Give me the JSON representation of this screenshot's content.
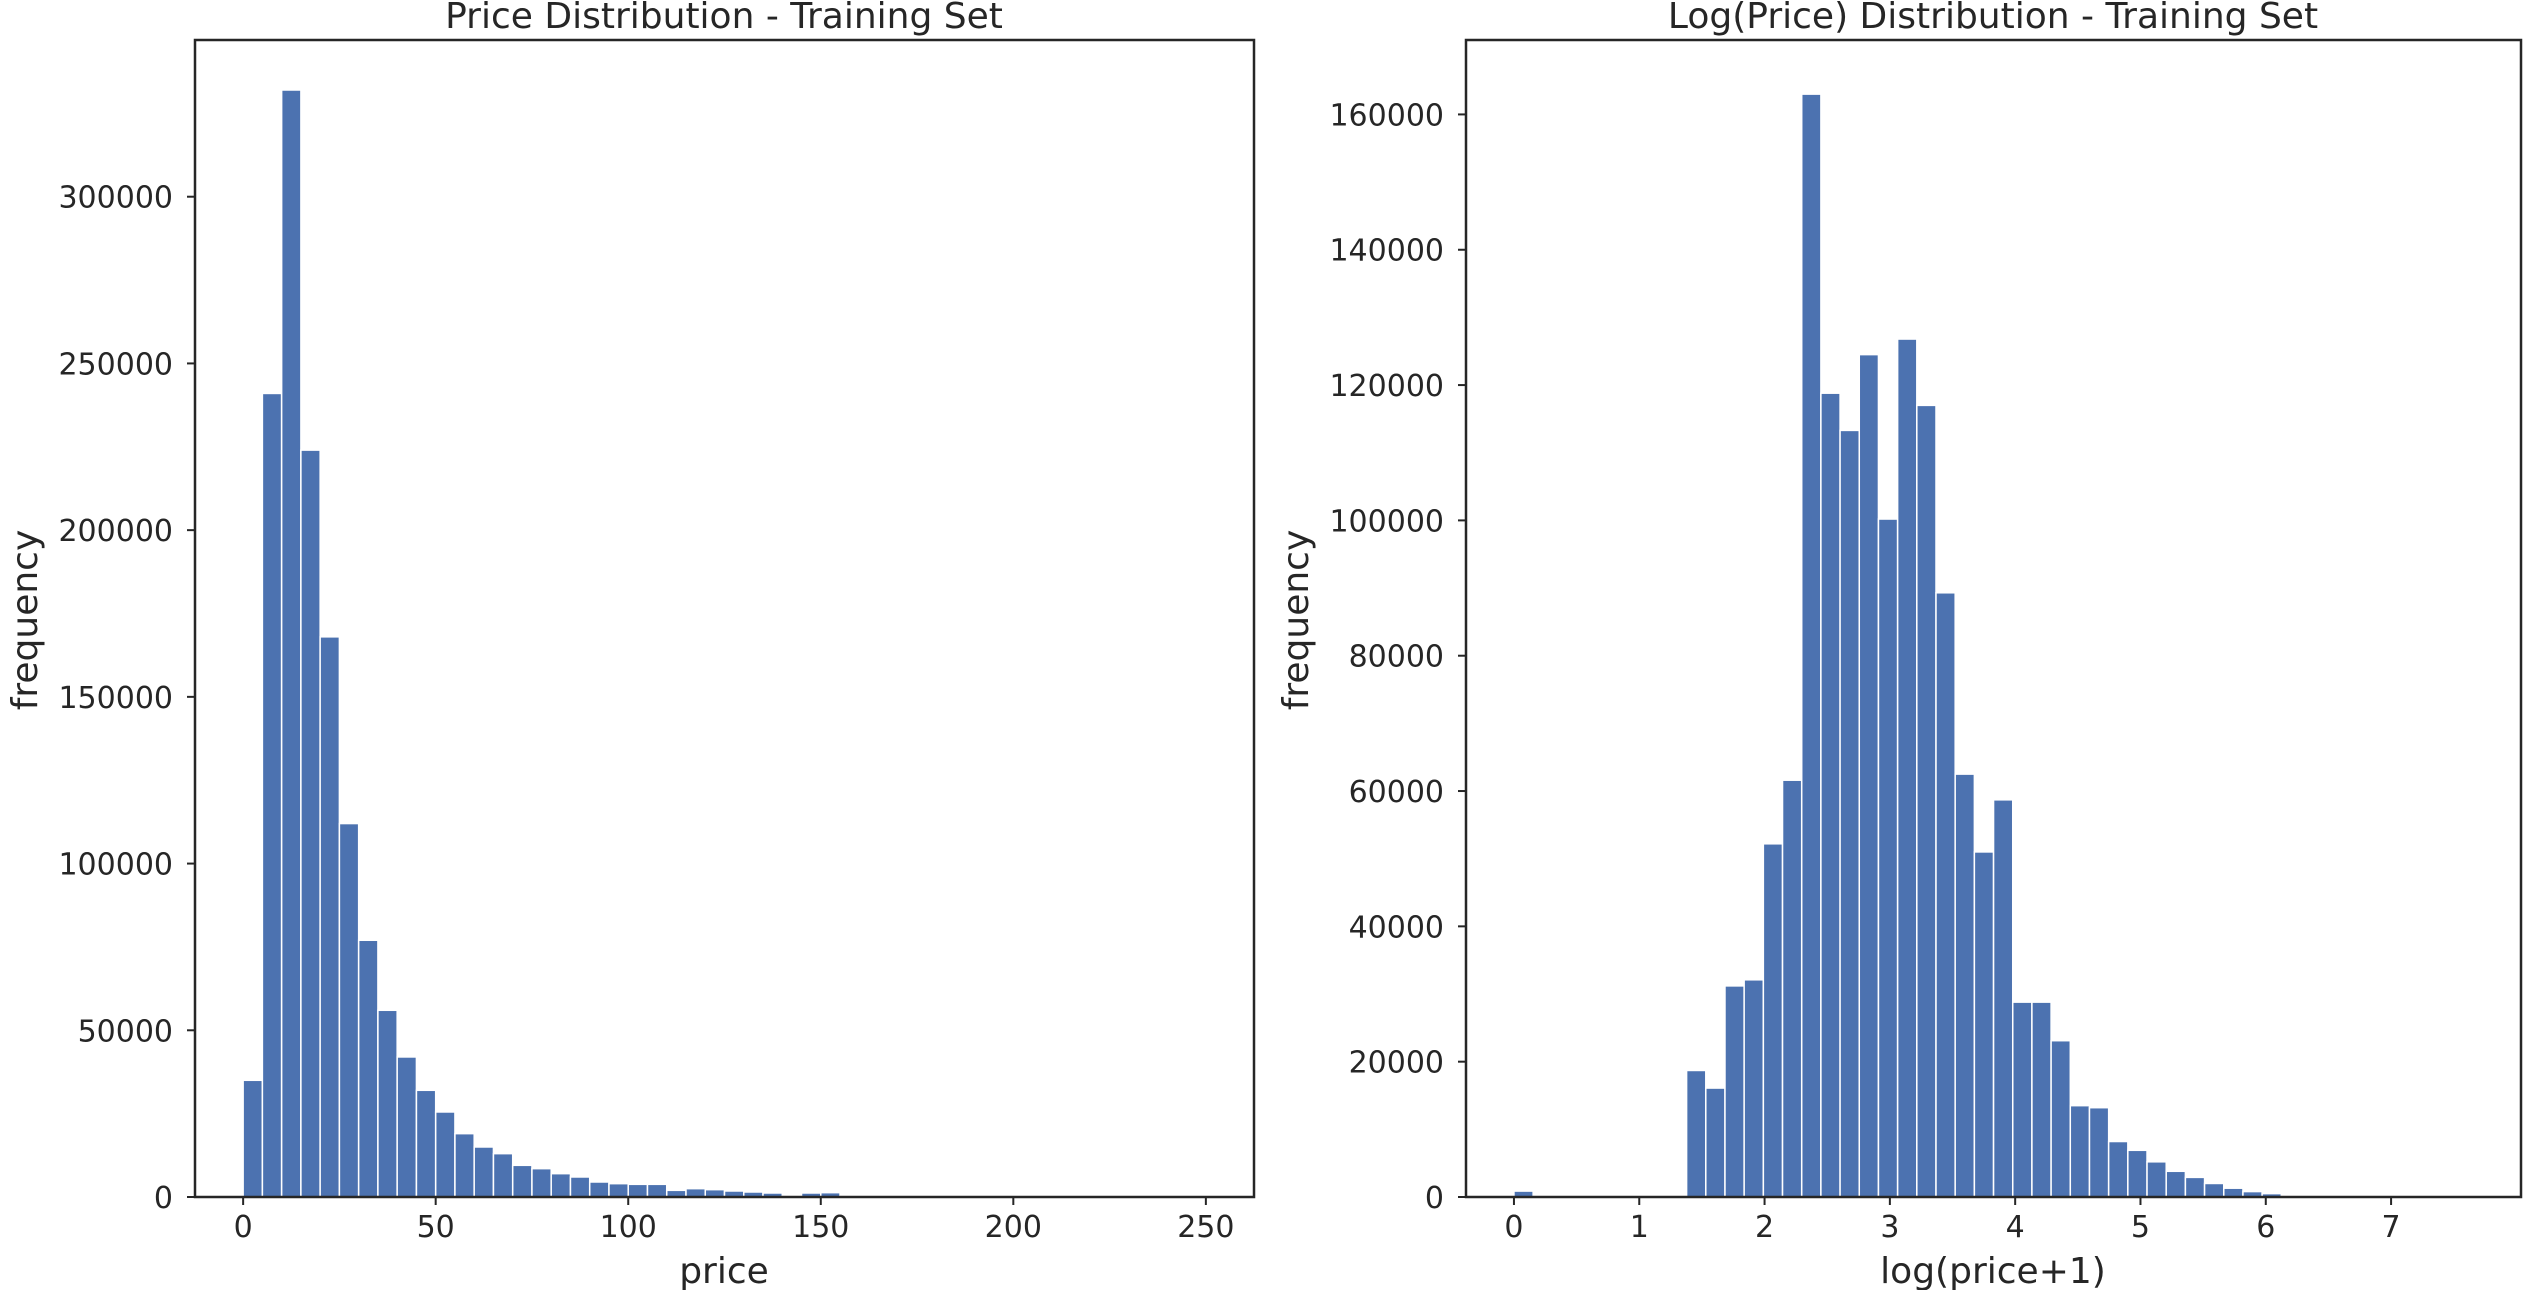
{
  "chart_data": [
    {
      "type": "bar",
      "title": "Price Distribution - Training Set",
      "xlabel": "price",
      "ylabel": "frequency",
      "xlim": [
        -12.5,
        262.5
      ],
      "ylim": [
        0,
        347000
      ],
      "xticks": [
        0,
        50,
        100,
        150,
        200,
        250
      ],
      "xtick_labels": [
        "0",
        "50",
        "100",
        "150",
        "200",
        "250"
      ],
      "yticks": [
        0,
        50000,
        100000,
        150000,
        200000,
        250000,
        300000
      ],
      "ytick_labels": [
        "0",
        "50000",
        "100000",
        "150000",
        "200000",
        "250000",
        "300000"
      ],
      "grid": false,
      "bar_color": "#4c72b0",
      "bin_edges": [
        0,
        5,
        10,
        15,
        20,
        25,
        30,
        35,
        40,
        45,
        50,
        55,
        60,
        65,
        70,
        75,
        80,
        85,
        90,
        95,
        100,
        105,
        110,
        115,
        120,
        125,
        130,
        135,
        140,
        145,
        150,
        155,
        160,
        165,
        170,
        175,
        180,
        185,
        190,
        195,
        200,
        205,
        210,
        215,
        220,
        225,
        230,
        235,
        240,
        245,
        250
      ],
      "values": [
        35000,
        241000,
        332000,
        224000,
        168000,
        112000,
        77000,
        56000,
        42000,
        32000,
        25500,
        19000,
        15000,
        13000,
        9500,
        8500,
        7000,
        6000,
        4500,
        4000,
        3800,
        3800,
        2000,
        2500,
        2200,
        1800,
        1500,
        1200,
        500,
        1200,
        1300,
        300,
        300,
        200,
        200,
        150,
        150,
        100,
        100,
        100,
        80,
        60,
        60,
        50,
        50,
        40,
        40,
        30,
        30,
        30
      ]
    },
    {
      "type": "bar",
      "title": "Log(Price) Distribution - Training Set",
      "xlabel": "log(price+1)",
      "ylabel": "frequency",
      "xlim": [
        -0.3827,
        8.0368
      ],
      "ylim": [
        0,
        171000
      ],
      "xticks": [
        0,
        1,
        2,
        3,
        4,
        5,
        6,
        7
      ],
      "xtick_labels": [
        "0",
        "1",
        "2",
        "3",
        "4",
        "5",
        "6",
        "7"
      ],
      "yticks": [
        0,
        20000,
        40000,
        60000,
        80000,
        100000,
        120000,
        140000,
        160000
      ],
      "ytick_labels": [
        "0",
        "20000",
        "40000",
        "60000",
        "80000",
        "100000",
        "120000",
        "140000",
        "160000"
      ],
      "grid": false,
      "bar_color": "#4c72b0",
      "bin_start": 0,
      "bin_width": 0.1531,
      "values": [
        874,
        0,
        0,
        0,
        0,
        0,
        0,
        0,
        0,
        18700,
        16100,
        31200,
        32100,
        52200,
        61600,
        163000,
        118800,
        113300,
        124500,
        100200,
        126800,
        117000,
        89300,
        62500,
        51000,
        58700,
        28800,
        28800,
        23100,
        13500,
        13200,
        8200,
        6900,
        5200,
        3800,
        2900,
        2000,
        1300,
        800,
        500,
        150,
        100,
        50,
        30,
        20,
        10,
        5,
        3,
        2,
        1
      ]
    }
  ]
}
